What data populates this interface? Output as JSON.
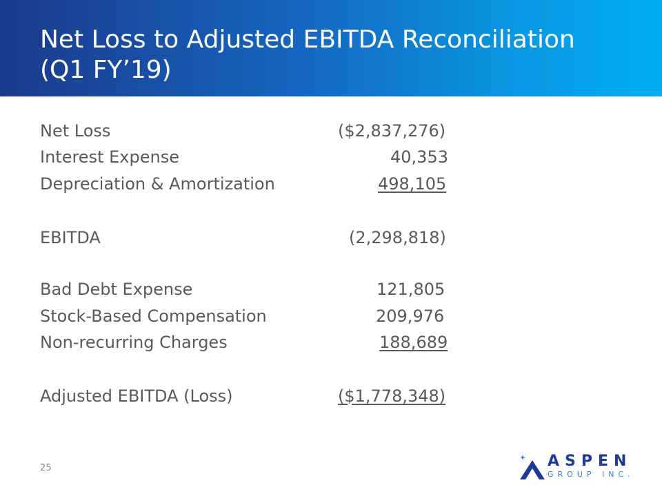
{
  "slide": {
    "title": "Net Loss to Adjusted EBITDA Reconciliation\n(Q1 FY’19)",
    "page_number": "25"
  },
  "rows": [
    {
      "label": "Net Loss",
      "value": "($2,837,276)"
    },
    {
      "label": "Interest Expense",
      "value": "40,353"
    },
    {
      "label": "Depreciation & Amortization",
      "value": "498,105"
    },
    {
      "label": "EBITDA",
      "value": "(2,298,818)"
    },
    {
      "label": "Bad Debt Expense",
      "value": "121,805"
    },
    {
      "label": "Stock-Based Compensation",
      "value": "209,976"
    },
    {
      "label": "Non-recurring Charges",
      "value": "188,689"
    },
    {
      "label": "Adjusted EBITDA (Loss)",
      "value": "($1,778,348)"
    }
  ],
  "logo": {
    "name": "ASPEN",
    "subtitle": "GROUP INC."
  },
  "colors": {
    "header_start": "#1b3a8c",
    "header_end": "#00aeef",
    "body_text": "#595959",
    "logo_primary": "#1f3a93",
    "logo_accent": "#3a7fd0"
  }
}
